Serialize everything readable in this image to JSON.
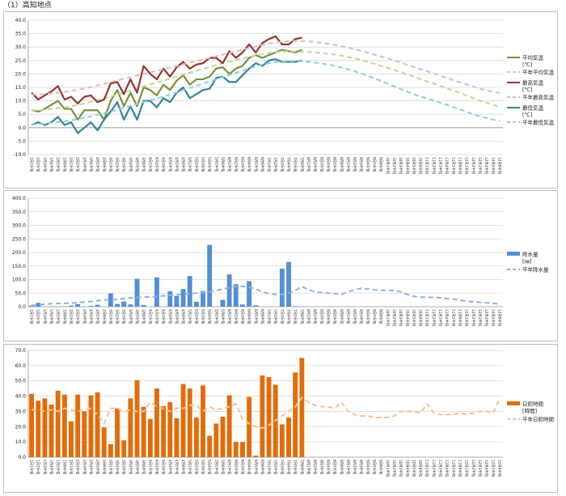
{
  "page": {
    "title": "（1）高知地点"
  },
  "periods": [
    "1月1半旬",
    "1月2半旬",
    "1月3半旬",
    "1月4半旬",
    "1月5半旬",
    "1月6半旬",
    "2月1半旬",
    "2月2半旬",
    "2月3半旬",
    "2月4半旬",
    "2月5半旬",
    "2月6半旬",
    "3月1半旬",
    "3月2半旬",
    "3月3半旬",
    "3月4半旬",
    "3月5半旬",
    "3月6半旬",
    "4月1半旬",
    "4月2半旬",
    "4月3半旬",
    "4月4半旬",
    "4月5半旬",
    "4月6半旬",
    "5月1半旬",
    "5月2半旬",
    "5月3半旬",
    "5月4半旬",
    "5月5半旬",
    "5月6半旬",
    "6月1半旬",
    "6月2半旬",
    "6月3半旬",
    "6月4半旬",
    "6月5半旬",
    "6月6半旬",
    "7月1半旬",
    "7月2半旬",
    "7月3半旬",
    "7月4半旬",
    "7月5半旬",
    "7月6半旬",
    "8月1半旬",
    "8月2半旬",
    "8月3半旬",
    "8月4半旬",
    "8月5半旬",
    "8月6半旬",
    "9月1半旬",
    "9月2半旬",
    "9月3半旬",
    "9月4半旬",
    "9月5半旬",
    "9月6半旬",
    "10月1半旬",
    "10月2半旬",
    "10月3半旬",
    "10月4半旬",
    "10月5半旬",
    "10月6半旬",
    "11月1半旬",
    "11月2半旬",
    "11月3半旬",
    "11月4半旬",
    "11月5半旬",
    "11月6半旬",
    "12月1半旬",
    "12月2半旬",
    "12月3半旬",
    "12月4半旬",
    "12月5半旬",
    "12月6半旬"
  ],
  "chart_data": [
    {
      "type": "line",
      "ylim": [
        -10,
        40
      ],
      "yticks": [
        "-10.0",
        "-5.0",
        "0.0",
        "5.0",
        "10.0",
        "15.0",
        "20.0",
        "25.0",
        "30.0",
        "35.0",
        "40.0"
      ],
      "series": [
        {
          "name": "平均気温",
          "unit": "[℃]",
          "color": "#77933c",
          "style": "solid",
          "values": [
            6.5,
            6,
            7,
            8.5,
            10,
            7,
            7,
            3,
            6.5,
            6.5,
            6.5,
            3,
            10,
            14,
            8,
            13,
            8,
            15,
            14,
            12,
            16,
            14,
            17.5,
            19.5,
            16,
            18,
            18,
            19,
            22,
            22.5,
            20,
            22,
            23,
            26,
            27,
            26,
            27,
            28,
            29,
            28.5,
            28,
            29
          ]
        },
        {
          "name": "平年平均気温",
          "color": "#c3d69b",
          "style": "dashed",
          "values": [
            6.4,
            6.5,
            6.7,
            7,
            7.3,
            7.6,
            8,
            8.5,
            9,
            9.6,
            10.2,
            10.9,
            11.6,
            12.3,
            13,
            13.8,
            14.6,
            15.4,
            16.1,
            16.8,
            17.5,
            18.2,
            19,
            19.8,
            20.5,
            21.2,
            21.9,
            22.6,
            23.3,
            24,
            24.6,
            25.2,
            25.8,
            26.4,
            26.9,
            27.4,
            27.8,
            28.1,
            28.3,
            28.4,
            28.4,
            28.3,
            28.2,
            28,
            27.8,
            27.5,
            27.2,
            26.8,
            26.3,
            25.8,
            25.2,
            24.5,
            23.8,
            23,
            22.3,
            21.5,
            20.7,
            19.8,
            19,
            18.1,
            17.2,
            16.4,
            15.5,
            14.7,
            13.8,
            12.9,
            12,
            11,
            10,
            9.3,
            8.5,
            7.8
          ]
        },
        {
          "name": "最高気温",
          "unit": "[℃]",
          "color": "#943634",
          "style": "solid",
          "values": [
            13,
            10.5,
            12,
            13.5,
            15.5,
            10.5,
            11.5,
            9,
            11.5,
            12,
            9.5,
            10.5,
            16.5,
            17,
            12.5,
            18,
            13,
            23,
            20,
            18,
            22,
            19,
            22.5,
            24.5,
            22,
            23.5,
            24,
            26,
            26,
            24,
            28.5,
            26,
            28,
            31,
            28,
            31.5,
            33,
            34,
            31,
            31,
            33,
            33.5
          ]
        },
        {
          "name": "平年最高気温",
          "color": "#e6b9b8",
          "style": "dashed",
          "values": [
            12.3,
            12.3,
            12.5,
            12.7,
            13,
            13.3,
            13.7,
            14.1,
            14.6,
            15.1,
            15.7,
            16.3,
            17,
            17.6,
            18.2,
            18.8,
            19.4,
            20,
            20.6,
            21.2,
            21.8,
            22.4,
            23,
            23.6,
            24.2,
            24.8,
            25.4,
            26,
            26.6,
            27.2,
            27.8,
            28.4,
            29,
            29.6,
            30.2,
            30.8,
            31.3,
            31.7,
            32,
            32.2,
            32.3,
            32.2,
            32.1,
            31.9,
            31.6,
            31.2,
            30.8,
            30.3,
            29.8,
            29.2,
            28.6,
            27.9,
            27.2,
            26.5,
            25.8,
            25,
            24.2,
            23.4,
            22.6,
            21.8,
            21,
            20.2,
            19.3,
            18.5,
            17.7,
            16.9,
            16.1,
            15.3,
            14.5,
            13.9,
            13.4,
            13
          ]
        },
        {
          "name": "最低気温",
          "unit": "[℃]",
          "color": "#31859c",
          "style": "solid",
          "values": [
            1,
            2,
            1,
            2,
            4,
            1,
            2,
            -2,
            0,
            2,
            -1,
            3,
            6,
            9.5,
            3,
            8,
            3,
            10,
            10,
            7.5,
            11,
            9.5,
            13,
            15,
            11,
            12.5,
            14,
            14.5,
            18.5,
            19,
            17,
            17,
            19.5,
            22,
            24,
            23,
            25,
            25.5,
            24.5,
            24.5,
            24.5,
            25
          ]
        },
        {
          "name": "平年最低気温",
          "color": "#92cddc",
          "style": "dashed",
          "values": [
            1.2,
            1.3,
            1.5,
            1.8,
            2.1,
            2.4,
            2.8,
            3.2,
            3.7,
            4.2,
            4.8,
            5.4,
            6,
            6.7,
            7.4,
            8.1,
            8.8,
            9.5,
            10.2,
            10.9,
            11.6,
            12.4,
            13.2,
            14,
            14.8,
            15.6,
            16.4,
            17.2,
            18,
            18.8,
            19.6,
            20.4,
            21.2,
            22,
            22.8,
            23.5,
            24,
            24.4,
            24.7,
            24.8,
            24.8,
            24.7,
            24.5,
            24.2,
            23.9,
            23.5,
            23,
            22.4,
            21.7,
            21,
            20.2,
            19.3,
            18.4,
            17.4,
            16.4,
            15.4,
            14.4,
            13.4,
            12.4,
            11.6,
            10.9,
            10.1,
            9.3,
            8.5,
            7.6,
            6.8,
            5.9,
            5,
            4.2,
            3.6,
            3,
            2.5
          ]
        }
      ]
    },
    {
      "type": "bar",
      "ylim": [
        0,
        400
      ],
      "yticks": [
        "0.0",
        "50.0",
        "100.0",
        "150.0",
        "200.0",
        "250.0",
        "300.0",
        "350.0",
        "400.0"
      ],
      "series": [
        {
          "name": "降水量",
          "unit": "[㎜]",
          "color": "#558ed5",
          "kind": "bar",
          "values": [
            4,
            14,
            0,
            1,
            0,
            1,
            4,
            9,
            1,
            3,
            7,
            0,
            49,
            10,
            19,
            8,
            103,
            6,
            0,
            108,
            0,
            57,
            40,
            65,
            113,
            18,
            58,
            228,
            0,
            25,
            119,
            83,
            8,
            94,
            5,
            0,
            0,
            0,
            140,
            165,
            2,
            1
          ]
        },
        {
          "name": "平年降水量",
          "color": "#8db4e2",
          "kind": "dashed",
          "values": [
            5,
            6,
            9,
            11,
            12,
            12,
            13,
            15,
            17,
            19,
            22,
            25,
            25,
            27,
            30,
            32,
            34,
            36,
            36,
            38,
            40,
            42,
            44,
            46,
            48,
            50,
            52,
            55,
            60,
            65,
            70,
            75,
            75,
            72,
            65,
            55,
            48,
            45,
            45,
            50,
            60,
            75,
            62,
            55,
            52,
            50,
            48,
            45,
            55,
            62,
            68,
            65,
            62,
            60,
            60,
            60,
            55,
            45,
            38,
            35,
            35,
            34,
            33,
            30,
            28,
            24,
            20,
            18,
            16,
            14,
            12,
            10
          ]
        }
      ]
    },
    {
      "type": "bar",
      "ylim": [
        0,
        70
      ],
      "yticks": [
        "0.0",
        "10.0",
        "20.0",
        "30.0",
        "40.0",
        "50.0",
        "60.0",
        "70.0"
      ],
      "series": [
        {
          "name": "日照時間",
          "unit": "[時間]",
          "color": "#e36c09",
          "kind": "bar",
          "values": [
            41.5,
            37,
            38.5,
            34.5,
            43.5,
            41,
            23.5,
            41,
            30,
            40.5,
            42.5,
            19.5,
            8.5,
            32,
            11,
            38.5,
            50.5,
            33,
            25,
            45,
            33.5,
            36,
            25.5,
            48,
            45,
            26,
            47,
            14,
            22,
            26.5,
            40.5,
            10,
            10,
            39.5,
            1,
            53.5,
            52.5,
            47.5,
            21.5,
            26,
            55.5,
            65
          ]
        },
        {
          "name": "平年日照時間",
          "color": "#fac090",
          "kind": "dashed",
          "values": [
            31,
            31,
            30,
            31,
            30,
            32,
            31,
            30,
            31,
            32,
            28,
            22,
            32,
            32,
            30,
            31,
            30,
            30,
            36,
            33,
            32,
            30,
            32,
            32,
            34,
            34,
            30,
            33,
            31,
            32,
            33,
            35,
            25,
            22,
            20,
            19,
            21,
            24,
            27,
            30,
            33,
            39,
            36,
            34,
            33,
            33,
            32,
            36,
            30,
            28,
            27,
            27,
            26,
            26,
            26,
            27,
            30,
            30,
            30,
            29,
            35,
            29,
            28,
            28,
            28,
            29,
            28,
            29,
            30,
            30,
            29,
            38
          ]
        }
      ]
    }
  ]
}
